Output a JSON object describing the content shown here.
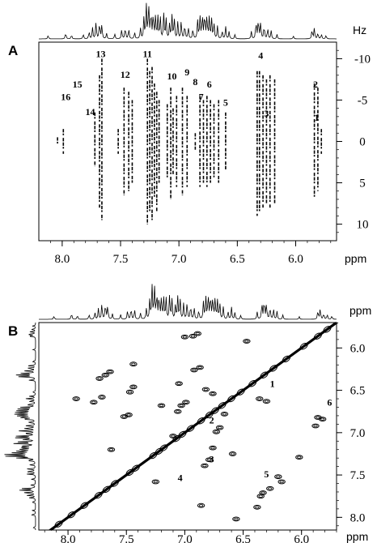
{
  "chart_data": [
    {
      "type": "heatmap",
      "panel_label": "A",
      "x_unit": "ppm",
      "y_unit": "Hz",
      "xlim": [
        8.2,
        5.65
      ],
      "ylim": [
        -12,
        12
      ],
      "x_ticks": [
        8.0,
        7.5,
        7.0,
        6.5,
        6.0
      ],
      "x_tick_labels": [
        "8.0",
        "7.5",
        "7.0",
        "6.5",
        "6.0"
      ],
      "y_ticks": [
        -10,
        -5,
        0,
        5,
        10
      ],
      "y_tick_labels": [
        "-10",
        "-5",
        "0",
        "5",
        "10"
      ],
      "peak_labels": [
        {
          "text": "1",
          "ppm": 5.82,
          "hz": -2.5
        },
        {
          "text": "2",
          "ppm": 5.83,
          "hz": -6.5
        },
        {
          "text": "3",
          "ppm": 6.25,
          "hz": -3.0
        },
        {
          "text": "4",
          "ppm": 6.3,
          "hz": -10.0
        },
        {
          "text": "5",
          "ppm": 6.6,
          "hz": -4.3
        },
        {
          "text": "6",
          "ppm": 6.74,
          "hz": -6.5
        },
        {
          "text": "7",
          "ppm": 6.81,
          "hz": -5.0
        },
        {
          "text": "8",
          "ppm": 6.86,
          "hz": -6.8
        },
        {
          "text": "9",
          "ppm": 6.93,
          "hz": -8.0
        },
        {
          "text": "10",
          "ppm": 7.06,
          "hz": -7.5
        },
        {
          "text": "11",
          "ppm": 7.27,
          "hz": -10.2
        },
        {
          "text": "12",
          "ppm": 7.46,
          "hz": -7.7
        },
        {
          "text": "13",
          "ppm": 7.67,
          "hz": -10.2
        },
        {
          "text": "14",
          "ppm": 7.76,
          "hz": -3.2
        },
        {
          "text": "15",
          "ppm": 7.87,
          "hz": -6.5
        },
        {
          "text": "16",
          "ppm": 7.97,
          "hz": -5.0
        }
      ],
      "multiplets": [
        {
          "ppm": 7.66,
          "y1": -10.0,
          "y2": 9.5
        },
        {
          "ppm": 7.72,
          "y1": -3.5,
          "y2": 3.0
        },
        {
          "ppm": 7.68,
          "y1": -8.0,
          "y2": 8.0
        },
        {
          "ppm": 7.47,
          "y1": -6.5,
          "y2": 6.5
        },
        {
          "ppm": 7.43,
          "y1": -6.0,
          "y2": 6.0
        },
        {
          "ppm": 7.4,
          "y1": -5.0,
          "y2": 5.0
        },
        {
          "ppm": 7.27,
          "y1": -10.0,
          "y2": 10.0
        },
        {
          "ppm": 7.25,
          "y1": -8.5,
          "y2": 8.5
        },
        {
          "ppm": 7.23,
          "y1": -9.0,
          "y2": 9.5
        },
        {
          "ppm": 7.21,
          "y1": -7.0,
          "y2": 7.0
        },
        {
          "ppm": 7.19,
          "y1": -6.0,
          "y2": 8.5
        },
        {
          "ppm": 7.17,
          "y1": -5.0,
          "y2": 5.0
        },
        {
          "ppm": 7.1,
          "y1": -4.5,
          "y2": 4.5
        },
        {
          "ppm": 7.07,
          "y1": -6.5,
          "y2": 7.0
        },
        {
          "ppm": 7.05,
          "y1": -4.0,
          "y2": 4.0
        },
        {
          "ppm": 7.02,
          "y1": -5.5,
          "y2": 5.5
        },
        {
          "ppm": 6.97,
          "y1": -6.5,
          "y2": 6.5
        },
        {
          "ppm": 6.93,
          "y1": -5.5,
          "y2": 5.5
        },
        {
          "ppm": 6.86,
          "y1": -1.0,
          "y2": 1.0
        },
        {
          "ppm": 6.82,
          "y1": -5.5,
          "y2": 5.5
        },
        {
          "ppm": 6.79,
          "y1": -5.0,
          "y2": 5.0
        },
        {
          "ppm": 6.76,
          "y1": -5.5,
          "y2": 5.5
        },
        {
          "ppm": 6.73,
          "y1": -5.0,
          "y2": 5.0
        },
        {
          "ppm": 6.7,
          "y1": -4.5,
          "y2": 4.5
        },
        {
          "ppm": 6.66,
          "y1": -5.0,
          "y2": 5.0
        },
        {
          "ppm": 6.6,
          "y1": -3.5,
          "y2": 3.5
        },
        {
          "ppm": 6.33,
          "y1": -8.5,
          "y2": 9.0
        },
        {
          "ppm": 6.31,
          "y1": -8.5,
          "y2": 8.5
        },
        {
          "ppm": 6.28,
          "y1": -8.0,
          "y2": 8.0
        },
        {
          "ppm": 6.25,
          "y1": -7.5,
          "y2": 7.5
        },
        {
          "ppm": 6.22,
          "y1": -8.0,
          "y2": 8.0
        },
        {
          "ppm": 6.18,
          "y1": -7.5,
          "y2": 7.5
        },
        {
          "ppm": 5.84,
          "y1": -7.0,
          "y2": 7.0
        },
        {
          "ppm": 5.81,
          "y1": -6.5,
          "y2": 6.0
        },
        {
          "ppm": 5.78,
          "y1": -1.5,
          "y2": 1.5
        },
        {
          "ppm": 7.99,
          "y1": -1.5,
          "y2": 1.5
        },
        {
          "ppm": 8.04,
          "y1": -0.5,
          "y2": 0.5
        },
        {
          "ppm": 7.52,
          "y1": -1.5,
          "y2": 1.5
        }
      ]
    },
    {
      "type": "heatmap",
      "panel_label": "B",
      "x_unit": "ppm",
      "y_unit": "ppm",
      "xlim": [
        8.25,
        5.7
      ],
      "ylim": [
        5.7,
        8.15
      ],
      "x_ticks": [
        8.0,
        7.5,
        7.0,
        6.5,
        6.0
      ],
      "x_tick_labels": [
        "8.0",
        "7.5",
        "7.0",
        "6.5",
        "6.0"
      ],
      "y_ticks": [
        6.0,
        6.5,
        7.0,
        7.5,
        8.0
      ],
      "y_tick_labels": [
        "6.0",
        "6.5",
        "7.0",
        "7.5",
        "8.0"
      ],
      "peak_labels": [
        {
          "text": "1",
          "ppm": 6.25,
          "ppm_y": 6.46
        },
        {
          "text": "2",
          "ppm": 6.77,
          "ppm_y": 6.89
        },
        {
          "text": "3",
          "ppm": 6.77,
          "ppm_y": 7.35
        },
        {
          "text": "4",
          "ppm": 7.04,
          "ppm_y": 7.57
        },
        {
          "text": "5",
          "ppm": 6.3,
          "ppm_y": 7.53
        },
        {
          "text": "6",
          "ppm": 5.76,
          "ppm_y": 6.68
        }
      ],
      "cross_peaks": [
        {
          "x": 7.68,
          "y": 6.32
        },
        {
          "x": 7.73,
          "y": 6.36
        },
        {
          "x": 7.64,
          "y": 6.28
        },
        {
          "x": 7.47,
          "y": 6.52
        },
        {
          "x": 7.44,
          "y": 6.46
        },
        {
          "x": 7.71,
          "y": 6.58
        },
        {
          "x": 7.78,
          "y": 6.64
        },
        {
          "x": 7.52,
          "y": 6.81
        },
        {
          "x": 7.48,
          "y": 6.79
        },
        {
          "x": 7.44,
          "y": 6.19
        },
        {
          "x": 7.2,
          "y": 6.68
        },
        {
          "x": 7.03,
          "y": 6.68
        },
        {
          "x": 6.99,
          "y": 6.64
        },
        {
          "x": 7.06,
          "y": 6.75
        },
        {
          "x": 6.82,
          "y": 6.49
        },
        {
          "x": 6.76,
          "y": 6.54
        },
        {
          "x": 6.87,
          "y": 6.23
        },
        {
          "x": 6.92,
          "y": 6.26
        },
        {
          "x": 6.73,
          "y": 6.99
        },
        {
          "x": 6.7,
          "y": 6.94
        },
        {
          "x": 6.76,
          "y": 7.18
        },
        {
          "x": 6.79,
          "y": 7.32
        },
        {
          "x": 6.83,
          "y": 7.39
        },
        {
          "x": 6.59,
          "y": 7.25
        },
        {
          "x": 6.36,
          "y": 6.6
        },
        {
          "x": 6.3,
          "y": 6.63
        },
        {
          "x": 6.33,
          "y": 7.71
        },
        {
          "x": 6.27,
          "y": 7.66
        },
        {
          "x": 6.35,
          "y": 7.75
        },
        {
          "x": 6.2,
          "y": 7.52
        },
        {
          "x": 6.17,
          "y": 7.58
        },
        {
          "x": 6.02,
          "y": 7.29
        },
        {
          "x": 5.86,
          "y": 6.82
        },
        {
          "x": 5.82,
          "y": 6.84
        },
        {
          "x": 5.88,
          "y": 6.92
        },
        {
          "x": 7.0,
          "y": 5.87
        },
        {
          "x": 6.93,
          "y": 5.86
        },
        {
          "x": 6.89,
          "y": 5.83
        },
        {
          "x": 6.47,
          "y": 5.92
        },
        {
          "x": 7.63,
          "y": 7.2
        },
        {
          "x": 6.66,
          "y": 6.78
        },
        {
          "x": 7.93,
          "y": 6.6
        },
        {
          "x": 7.25,
          "y": 7.58
        },
        {
          "x": 6.86,
          "y": 7.86
        },
        {
          "x": 7.05,
          "y": 6.42
        },
        {
          "x": 6.56,
          "y": 8.02
        },
        {
          "x": 7.1,
          "y": 7.04
        },
        {
          "x": 6.38,
          "y": 7.88
        }
      ],
      "diagonal_peaks": [
        8.08,
        7.97,
        7.86,
        7.74,
        7.67,
        7.6,
        7.47,
        7.42,
        7.27,
        7.22,
        7.18,
        7.07,
        7.02,
        6.95,
        6.86,
        6.79,
        6.74,
        6.68,
        6.6,
        6.52,
        6.42,
        6.32,
        6.24,
        6.13,
        5.98,
        5.86,
        5.78
      ]
    }
  ],
  "spectrum_1d": {
    "lines": [
      {
        "ppm": 8.12,
        "h": 0.1
      },
      {
        "ppm": 7.97,
        "h": 0.18
      },
      {
        "ppm": 7.92,
        "h": 0.12
      },
      {
        "ppm": 7.82,
        "h": 0.14
      },
      {
        "ppm": 7.77,
        "h": 0.2
      },
      {
        "ppm": 7.74,
        "h": 0.3
      },
      {
        "ppm": 7.71,
        "h": 0.45
      },
      {
        "ppm": 7.68,
        "h": 0.48
      },
      {
        "ppm": 7.66,
        "h": 0.4
      },
      {
        "ppm": 7.62,
        "h": 0.15
      },
      {
        "ppm": 7.55,
        "h": 0.14
      },
      {
        "ppm": 7.49,
        "h": 0.26
      },
      {
        "ppm": 7.46,
        "h": 0.34
      },
      {
        "ppm": 7.43,
        "h": 0.28
      },
      {
        "ppm": 7.38,
        "h": 0.18
      },
      {
        "ppm": 7.33,
        "h": 0.3
      },
      {
        "ppm": 7.3,
        "h": 0.55
      },
      {
        "ppm": 7.28,
        "h": 0.92
      },
      {
        "ppm": 7.26,
        "h": 1.0
      },
      {
        "ppm": 7.24,
        "h": 0.8
      },
      {
        "ppm": 7.22,
        "h": 0.7
      },
      {
        "ppm": 7.2,
        "h": 0.62
      },
      {
        "ppm": 7.18,
        "h": 0.58
      },
      {
        "ppm": 7.16,
        "h": 0.6
      },
      {
        "ppm": 7.13,
        "h": 0.66
      },
      {
        "ppm": 7.11,
        "h": 0.55
      },
      {
        "ppm": 7.08,
        "h": 0.4
      },
      {
        "ppm": 7.06,
        "h": 0.62
      },
      {
        "ppm": 7.04,
        "h": 0.58
      },
      {
        "ppm": 7.01,
        "h": 0.44
      },
      {
        "ppm": 6.98,
        "h": 0.5
      },
      {
        "ppm": 6.95,
        "h": 0.42
      },
      {
        "ppm": 6.92,
        "h": 0.34
      },
      {
        "ppm": 6.88,
        "h": 0.28
      },
      {
        "ppm": 6.84,
        "h": 0.48
      },
      {
        "ppm": 6.82,
        "h": 0.62
      },
      {
        "ppm": 6.8,
        "h": 0.7
      },
      {
        "ppm": 6.78,
        "h": 0.74
      },
      {
        "ppm": 6.76,
        "h": 0.66
      },
      {
        "ppm": 6.74,
        "h": 0.58
      },
      {
        "ppm": 6.72,
        "h": 0.52
      },
      {
        "ppm": 6.7,
        "h": 0.44
      },
      {
        "ppm": 6.67,
        "h": 0.34
      },
      {
        "ppm": 6.63,
        "h": 0.24
      },
      {
        "ppm": 6.6,
        "h": 0.34
      },
      {
        "ppm": 6.57,
        "h": 0.2
      },
      {
        "ppm": 6.52,
        "h": 0.12
      },
      {
        "ppm": 6.38,
        "h": 0.2
      },
      {
        "ppm": 6.34,
        "h": 0.5
      },
      {
        "ppm": 6.32,
        "h": 0.58
      },
      {
        "ppm": 6.3,
        "h": 0.46
      },
      {
        "ppm": 6.27,
        "h": 0.38
      },
      {
        "ppm": 6.24,
        "h": 0.3
      },
      {
        "ppm": 6.21,
        "h": 0.22
      },
      {
        "ppm": 6.16,
        "h": 0.12
      },
      {
        "ppm": 6.02,
        "h": 0.08
      },
      {
        "ppm": 5.86,
        "h": 0.26
      },
      {
        "ppm": 5.84,
        "h": 0.3
      },
      {
        "ppm": 5.81,
        "h": 0.18
      },
      {
        "ppm": 5.78,
        "h": 0.14
      },
      {
        "ppm": 5.74,
        "h": 0.1
      }
    ]
  }
}
